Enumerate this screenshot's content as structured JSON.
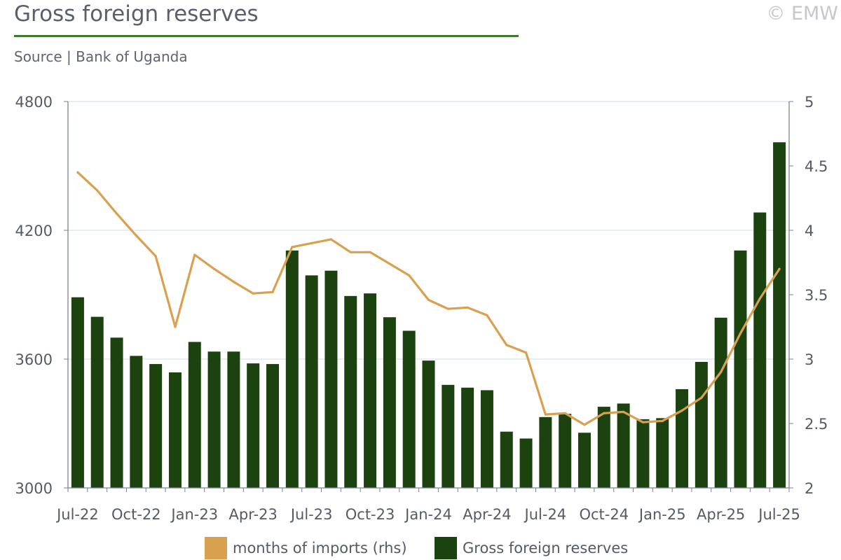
{
  "header": {
    "title": "Gross foreign reserves",
    "copyright": "© EMW",
    "source": "Source | Bank of Uganda"
  },
  "colors": {
    "bars": "#1c4210",
    "line": "#d9a04f",
    "grid": "#d7e2ec",
    "axis": "#7b8391",
    "title_rule": "#3d7a2e"
  },
  "chart_data": {
    "type": "bar",
    "months": [
      "Jul-22",
      "Aug-22",
      "Sep-22",
      "Oct-22",
      "Nov-22",
      "Dec-22",
      "Jan-23",
      "Feb-23",
      "Mar-23",
      "Apr-23",
      "May-23",
      "Jun-23",
      "Jul-23",
      "Aug-23",
      "Sep-23",
      "Oct-23",
      "Nov-23",
      "Dec-23",
      "Jan-24",
      "Feb-24",
      "Mar-24",
      "Apr-24",
      "May-24",
      "Jun-24",
      "Jul-24",
      "Aug-24",
      "Sep-24",
      "Oct-24",
      "Nov-24",
      "Dec-24",
      "Jan-25",
      "Feb-25",
      "Mar-25",
      "Apr-25",
      "May-25",
      "Jun-25",
      "Jul-25"
    ],
    "x_tick_labels": [
      "Jul-22",
      "Oct-22",
      "Jan-23",
      "Apr-23",
      "Jul-23",
      "Oct-23",
      "Jan-24",
      "Apr-24",
      "Jul-24",
      "Oct-24",
      "Jan-25",
      "Apr-25",
      "Jul-25"
    ],
    "series": [
      {
        "name": "Gross foreign reserves",
        "type": "bar",
        "axis": "left",
        "values": [
          3888,
          3797,
          3700,
          3615,
          3577,
          3538,
          3680,
          3635,
          3635,
          3580,
          3577,
          4106,
          3990,
          4012,
          3894,
          3906,
          3795,
          3732,
          3593,
          3480,
          3467,
          3455,
          3262,
          3230,
          3330,
          3345,
          3257,
          3378,
          3393,
          3320,
          3325,
          3460,
          3587,
          3793,
          4106,
          4283,
          4610
        ]
      },
      {
        "name": "months of imports (rhs)",
        "type": "line",
        "axis": "right",
        "values": [
          4.45,
          4.31,
          4.13,
          3.96,
          3.8,
          3.25,
          3.81,
          3.7,
          3.6,
          3.51,
          3.52,
          3.87,
          3.9,
          3.93,
          3.83,
          3.83,
          3.74,
          3.65,
          3.46,
          3.39,
          3.4,
          3.34,
          3.11,
          3.05,
          2.57,
          2.58,
          2.49,
          2.58,
          2.59,
          2.51,
          2.52,
          2.6,
          2.7,
          2.9,
          3.2,
          3.47,
          3.7
        ]
      }
    ],
    "y_left": {
      "lim": [
        3000,
        4800
      ],
      "ticks": [
        3000,
        3600,
        4200,
        4800
      ]
    },
    "y_right": {
      "lim": [
        2,
        5
      ],
      "ticks": [
        2,
        2.5,
        3,
        3.5,
        4,
        4.5,
        5
      ]
    },
    "grid": true,
    "legend": {
      "placement": "bottom"
    }
  }
}
